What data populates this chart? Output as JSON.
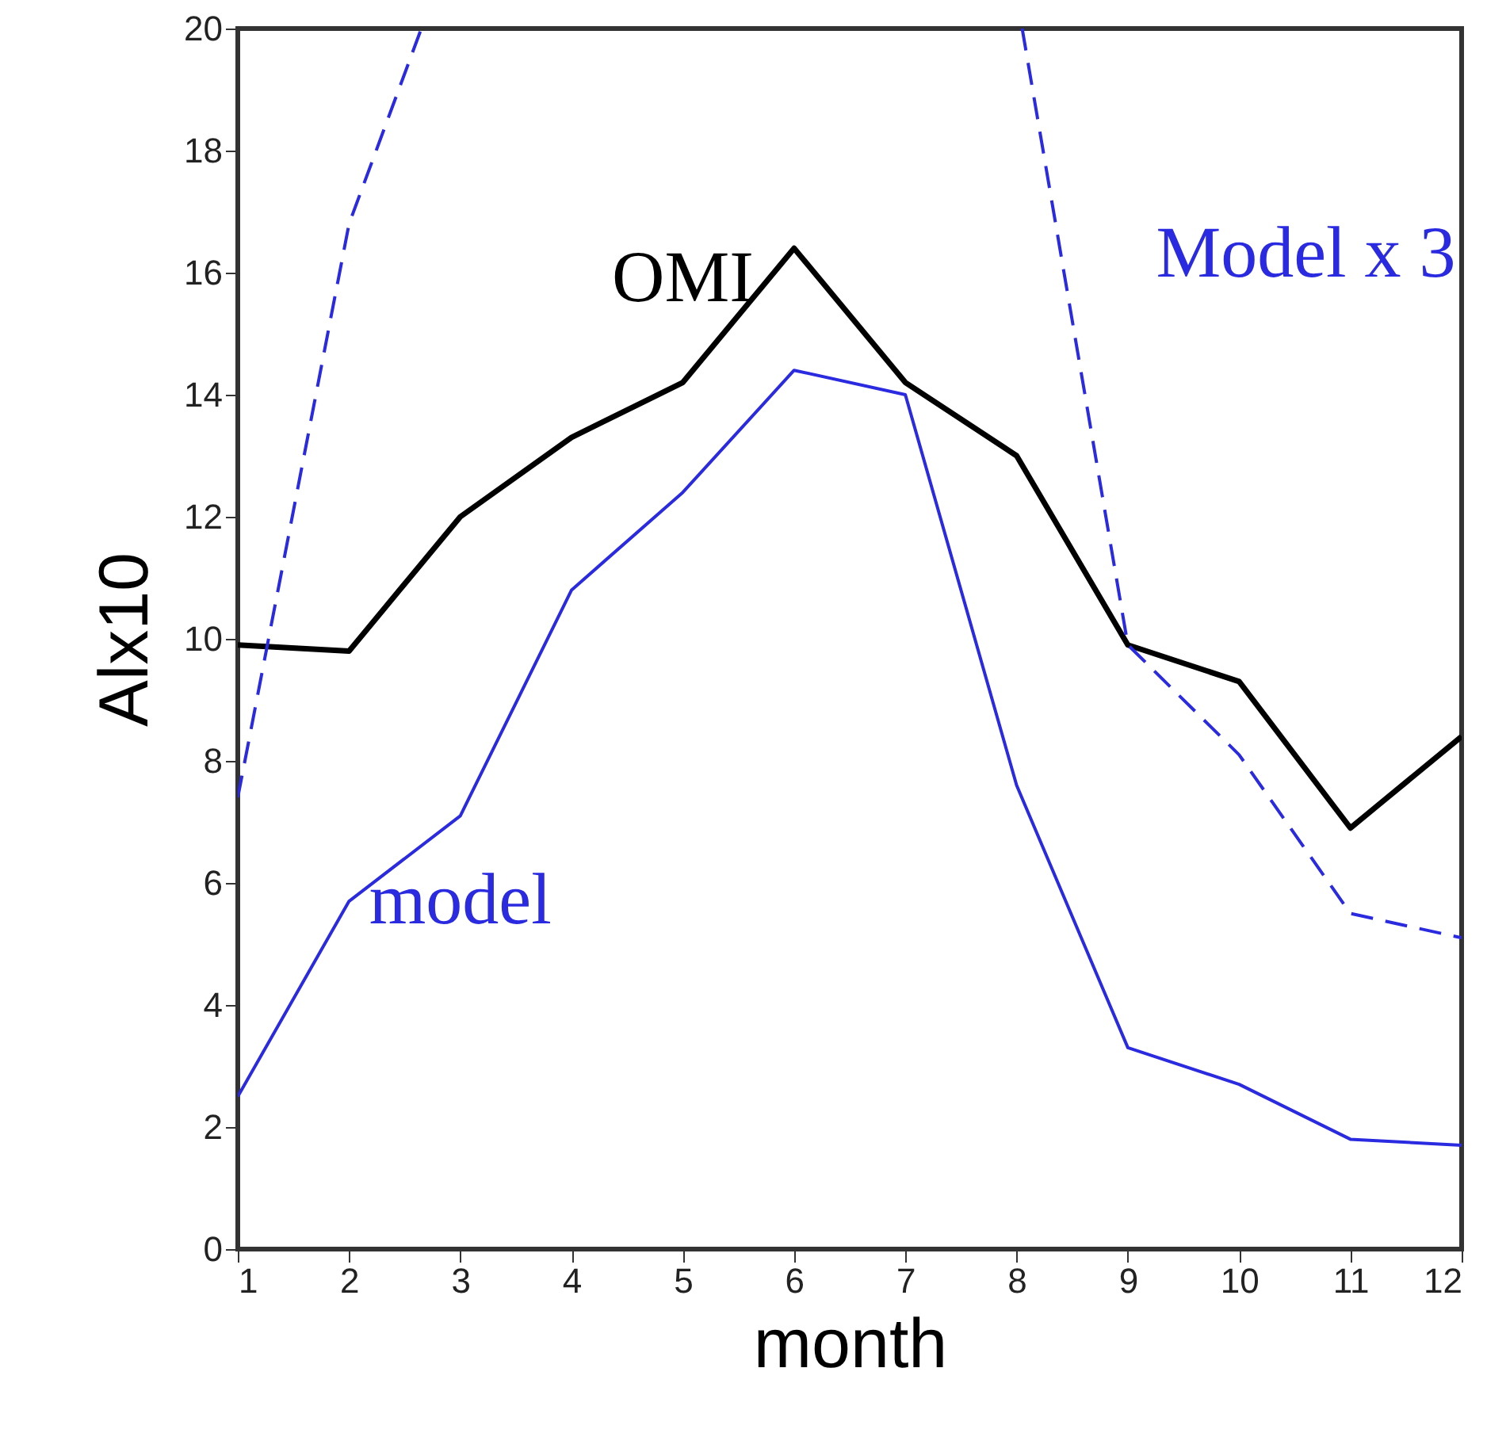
{
  "chart_data": {
    "type": "line",
    "xlabel": "month",
    "ylabel": "Alx10",
    "x": [
      1,
      2,
      3,
      4,
      5,
      6,
      7,
      8,
      9,
      10,
      11,
      12
    ],
    "xlim": [
      1,
      12
    ],
    "xticks": [
      1,
      2,
      3,
      4,
      5,
      6,
      7,
      8,
      9,
      10,
      11,
      12
    ],
    "ylim": [
      0,
      20
    ],
    "yticks": [
      0,
      2,
      4,
      6,
      8,
      10,
      12,
      14,
      16,
      18,
      20
    ],
    "grid": false,
    "legend": false,
    "series": [
      {
        "name": "OMI",
        "color": "#000000",
        "line_style": "solid",
        "values": [
          9.9,
          9.8,
          12.0,
          13.3,
          14.2,
          16.4,
          14.2,
          13.0,
          9.9,
          9.3,
          6.9,
          8.4
        ]
      },
      {
        "name": "model",
        "color": "#2a2ae0",
        "line_style": "solid",
        "values": [
          2.5,
          5.7,
          7.1,
          10.8,
          12.4,
          14.4,
          14.0,
          7.6,
          3.3,
          2.7,
          1.8,
          1.7
        ]
      },
      {
        "name": "Model x 3",
        "color": "#2a2ae0",
        "line_style": "dashed",
        "x": [
          1,
          2,
          2.65,
          5,
          8.05,
          9,
          10,
          11,
          12
        ],
        "values": [
          7.4,
          16.8,
          20,
          null,
          20,
          9.9,
          8.1,
          5.5,
          5.1
        ]
      }
    ]
  }
}
